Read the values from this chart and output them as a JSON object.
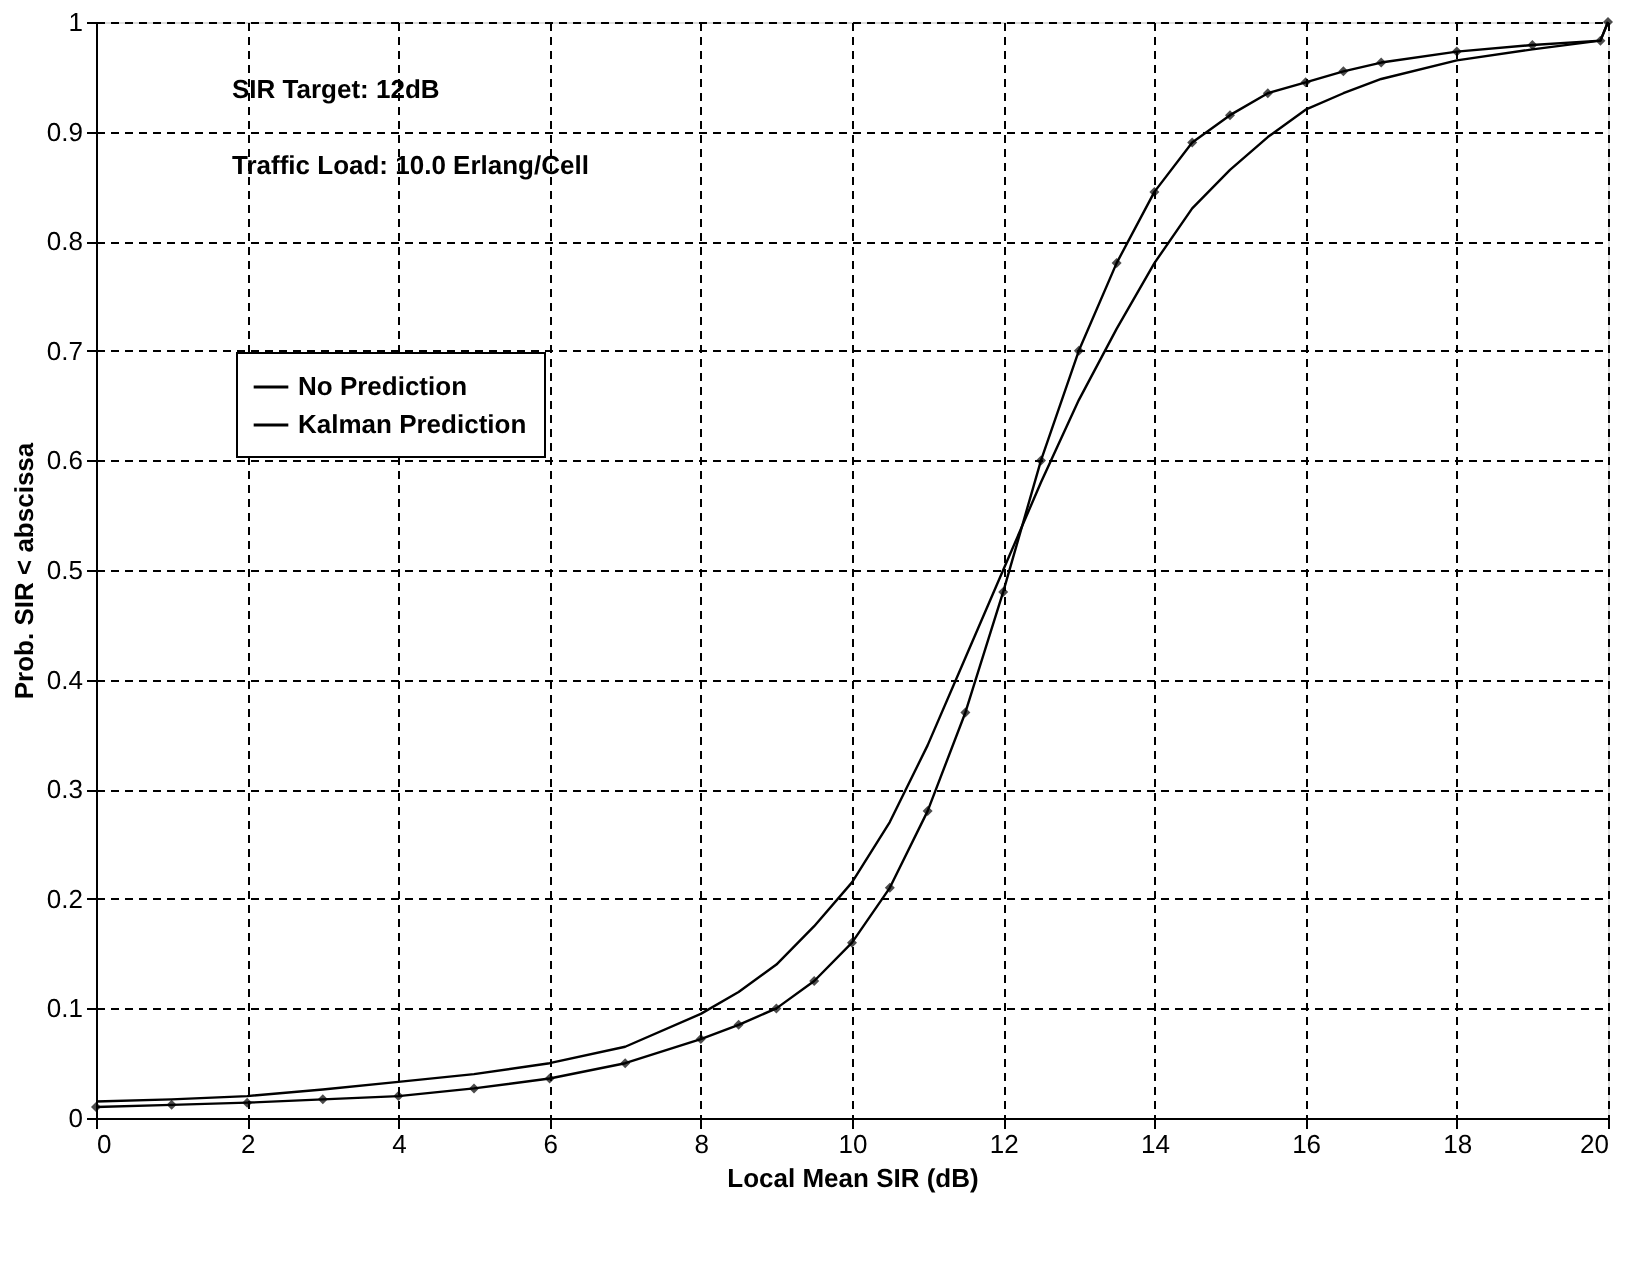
{
  "chart_data": {
    "type": "line",
    "xlabel": "Local Mean SIR (dB)",
    "ylabel": "Prob. SIR < abscissa",
    "annotations": [
      "SIR Target: 12dB",
      "Traffic Load: 10.0 Erlang/Cell"
    ],
    "xlim": [
      0,
      20
    ],
    "xticks": [
      0,
      2,
      4,
      6,
      8,
      10,
      12,
      14,
      16,
      18,
      20
    ],
    "ylim": [
      0,
      1
    ],
    "yticks": [
      0,
      0.1,
      0.2,
      0.3,
      0.4,
      0.5,
      0.6,
      0.7,
      0.8,
      0.9,
      1
    ],
    "grid": true,
    "legend": "top left",
    "x": [
      0,
      1,
      2,
      3,
      4,
      5,
      6,
      7,
      8,
      8.5,
      9,
      9.5,
      10,
      10.5,
      11,
      11.5,
      12,
      12.5,
      13,
      13.5,
      14,
      14.5,
      15,
      15.5,
      16,
      16.5,
      17,
      18,
      19,
      19.9,
      20
    ],
    "series": [
      {
        "name": "No Prediction",
        "color": "#000000",
        "marker": "none",
        "values": [
          0.015,
          0.017,
          0.02,
          0.026,
          0.033,
          0.04,
          0.05,
          0.065,
          0.095,
          0.115,
          0.14,
          0.175,
          0.215,
          0.27,
          0.34,
          0.42,
          0.5,
          0.58,
          0.655,
          0.72,
          0.78,
          0.83,
          0.865,
          0.895,
          0.92,
          0.935,
          0.948,
          0.965,
          0.975,
          0.983,
          1.0
        ]
      },
      {
        "name": "Kalman Prediction",
        "color": "#000000",
        "marker": "diamond",
        "values": [
          0.01,
          0.012,
          0.014,
          0.017,
          0.02,
          0.027,
          0.036,
          0.05,
          0.072,
          0.085,
          0.1,
          0.125,
          0.16,
          0.21,
          0.28,
          0.37,
          0.48,
          0.6,
          0.7,
          0.78,
          0.845,
          0.89,
          0.915,
          0.935,
          0.945,
          0.955,
          0.963,
          0.973,
          0.979,
          0.983,
          1.0
        ]
      }
    ]
  }
}
